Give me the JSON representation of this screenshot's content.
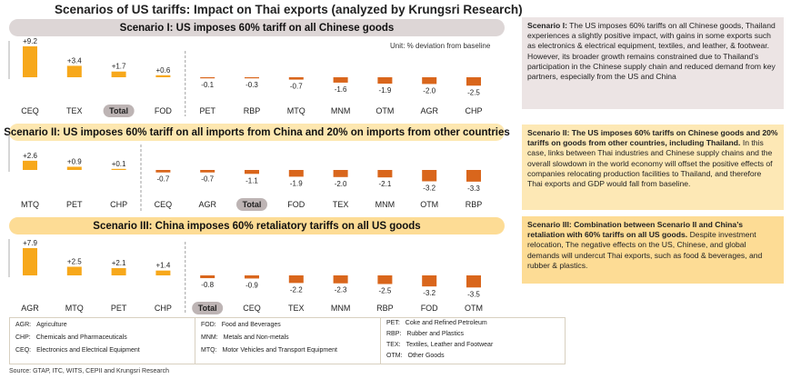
{
  "title": "Scenarios of US tariffs: Impact on Thai exports (analyzed by Krungsri Research)",
  "unit_note": "Unit: % deviation from baseline",
  "colors": {
    "positive": "#f7a81b",
    "negative": "#d9661c",
    "total_badge": "#bdb4b4"
  },
  "chart_data": [
    {
      "type": "bar",
      "title": "Scenario I: US imposes 60% tariff on all Chinese goods",
      "categories": [
        "CEQ",
        "TEX",
        "Total",
        "FOD",
        "PET",
        "RBP",
        "MTQ",
        "MNM",
        "OTM",
        "AGR",
        "CHP"
      ],
      "values": [
        9.2,
        3.4,
        1.7,
        0.6,
        -0.1,
        -0.3,
        -0.7,
        -1.6,
        -1.9,
        -2.0,
        -2.5
      ],
      "labels": [
        "+9.2",
        "+3.4",
        "+1.7",
        "+0.6",
        "-0.1",
        "-0.3",
        "-0.7",
        "-1.6",
        "-1.9",
        "-2.0",
        "-2.5"
      ],
      "highlight": "Total"
    },
    {
      "type": "bar",
      "title": "Scenario II: US imposes 60% tariff on all imports from China and 20% on imports from other countries",
      "categories": [
        "MTQ",
        "PET",
        "CHP",
        "CEQ",
        "AGR",
        "Total",
        "FOD",
        "TEX",
        "MNM",
        "OTM",
        "RBP"
      ],
      "values": [
        2.6,
        0.9,
        0.1,
        -0.7,
        -0.7,
        -1.1,
        -1.9,
        -2.0,
        -2.1,
        -3.2,
        -3.3
      ],
      "labels": [
        "+2.6",
        "+0.9",
        "+0.1",
        "-0.7",
        "-0.7",
        "-1.1",
        "-1.9",
        "-2.0",
        "-2.1",
        "-3.2",
        "-3.3"
      ],
      "highlight": "Total"
    },
    {
      "type": "bar",
      "title": "Scenario III: China imposes 60% retaliatory tariffs on all US goods",
      "categories": [
        "AGR",
        "MTQ",
        "PET",
        "CHP",
        "Total",
        "CEQ",
        "TEX",
        "MNM",
        "RBP",
        "FOD",
        "OTM"
      ],
      "values": [
        7.9,
        2.5,
        2.1,
        1.4,
        -0.8,
        -0.9,
        -2.2,
        -2.3,
        -2.5,
        -3.2,
        -3.5
      ],
      "labels": [
        "+7.9",
        "+2.5",
        "+2.1",
        "+1.4",
        "-0.8",
        "-0.9",
        "-2.2",
        "-2.3",
        "-2.5",
        "-3.2",
        "-3.5"
      ],
      "highlight": "Total"
    }
  ],
  "side_boxes": [
    {
      "lead": "Scenario I:",
      "lead_bold": true,
      "text": " The US imposes 60% tariffs on all Chinese goods, Thailand experiences a slightly positive impact, with gains in some exports such as electronics & electrical equipment, textiles, and leather, & footwear. However, its broader growth remains constrained due to Thailand’s participation in the Chinese supply chain and reduced demand from key partners, especially from the US and China"
    },
    {
      "lead": "Scenario II: The US imposes 60% tariffs on Chinese goods and 20% tariffs on goods from other countries, including Thailand.",
      "text": " In this case, links between Thai industries and Chinese supply chains and the overall slowdown in the world economy will offset the positive effects of companies relocating production facilities to Thailand, and therefore Thai exports and GDP would fall from baseline."
    },
    {
      "lead": "Scenario III: Combination between Scenario II and China’s retaliation with 60% tariffs on all US goods.",
      "text": " Despite investment relocation, The negative effects on the US, Chinese, and global demands will undercut Thai exports, such as food & beverages, and rubber & plastics."
    }
  ],
  "legend": [
    [
      {
        "code": "AGR:",
        "desc": "Agriculture"
      },
      {
        "code": "CHP:",
        "desc": "Chemicals and Pharmaceuticals"
      },
      {
        "code": "CEQ:",
        "desc": "Electronics and Electrical Equipment"
      }
    ],
    [
      {
        "code": "FOD:",
        "desc": "Food and Beverages"
      },
      {
        "code": "MNM:",
        "desc": "Metals and Non-metals"
      },
      {
        "code": "MTQ:",
        "desc": "Motor Vehicles and Transport Equipment"
      }
    ],
    [
      {
        "code": "PET:",
        "desc": "Coke and Refined Petroleum"
      },
      {
        "code": "RBP:",
        "desc": "Rubber and Plastics"
      },
      {
        "code": "TEX:",
        "desc": "Textiles, Leather and Footwear"
      },
      {
        "code": "OTM:",
        "desc": "Other Goods"
      }
    ]
  ],
  "source": "Source: GTAP, ITC, WITS, CEPII and Krungsri Research"
}
